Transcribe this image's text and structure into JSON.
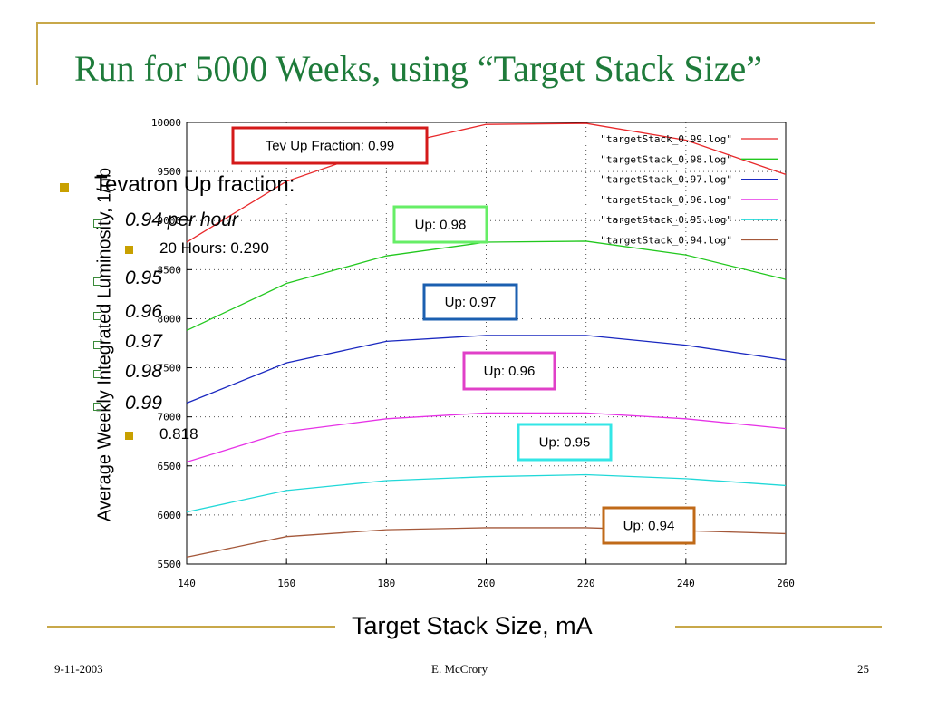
{
  "slide": {
    "title": "Run for 5000 Weeks, using “Target Stack Size”",
    "footer_date": "9-11-2003",
    "footer_author": "E. McCrory",
    "footer_page": "25",
    "accent_color": "#c8a84a",
    "title_color": "#1e7b3a"
  },
  "bullets": {
    "main": "Tevatron Up fraction:",
    "items": [
      {
        "label": "0.94 per hour",
        "sub": "20 Hours: 0.290"
      },
      {
        "label": "0.95"
      },
      {
        "label": "0.96"
      },
      {
        "label": "0.97"
      },
      {
        "label": "0.98"
      },
      {
        "label": "0.99",
        "sub": "0.818"
      }
    ]
  },
  "chart_data": {
    "type": "line",
    "xlabel": "Target Stack Size, mA",
    "ylabel": "Average Weekly Integrated Luminosity, 1/nb",
    "xlim": [
      140,
      260
    ],
    "ylim": [
      5500,
      10000
    ],
    "x_ticks": [
      140,
      160,
      180,
      200,
      220,
      240,
      260
    ],
    "y_ticks": [
      5500,
      6000,
      6500,
      7000,
      7500,
      8000,
      8500,
      9000,
      9500,
      10000
    ],
    "grid": true,
    "legend_position": "top-right",
    "x": [
      140,
      160,
      180,
      200,
      220,
      240,
      260
    ],
    "series": [
      {
        "name": "\"targetStack_0.99.log\"",
        "color": "#e8282a",
        "values": [
          8780,
          9400,
          9750,
          9980,
          9990,
          9820,
          9470
        ]
      },
      {
        "name": "\"targetStack_0.98.log\"",
        "color": "#22c81e",
        "values": [
          7880,
          8360,
          8640,
          8780,
          8790,
          8650,
          8400
        ]
      },
      {
        "name": "\"targetStack_0.97.log\"",
        "color": "#1a28c0",
        "values": [
          7140,
          7550,
          7770,
          7830,
          7830,
          7730,
          7580
        ]
      },
      {
        "name": "\"targetStack_0.96.log\"",
        "color": "#e632e6",
        "values": [
          6540,
          6850,
          6980,
          7040,
          7040,
          6980,
          6880
        ]
      },
      {
        "name": "\"targetStack_0.95.log\"",
        "color": "#21d8d8",
        "values": [
          6030,
          6250,
          6350,
          6390,
          6410,
          6370,
          6300
        ]
      },
      {
        "name": "\"targetStack_0.94.log\"",
        "color": "#a4583a",
        "values": [
          5570,
          5780,
          5850,
          5870,
          5870,
          5840,
          5810
        ]
      }
    ],
    "annotations": [
      {
        "text": "Tev Up Fraction: 0.99",
        "border": "#d41a1a"
      },
      {
        "text": "Up: 0.98",
        "border": "#66ee66"
      },
      {
        "text": "Up: 0.97",
        "border": "#1b5fb0"
      },
      {
        "text": "Up: 0.96",
        "border": "#e040c8"
      },
      {
        "text": "Up: 0.95",
        "border": "#33e6e6"
      },
      {
        "text": "Up: 0.94",
        "border": "#c06a18"
      }
    ]
  }
}
